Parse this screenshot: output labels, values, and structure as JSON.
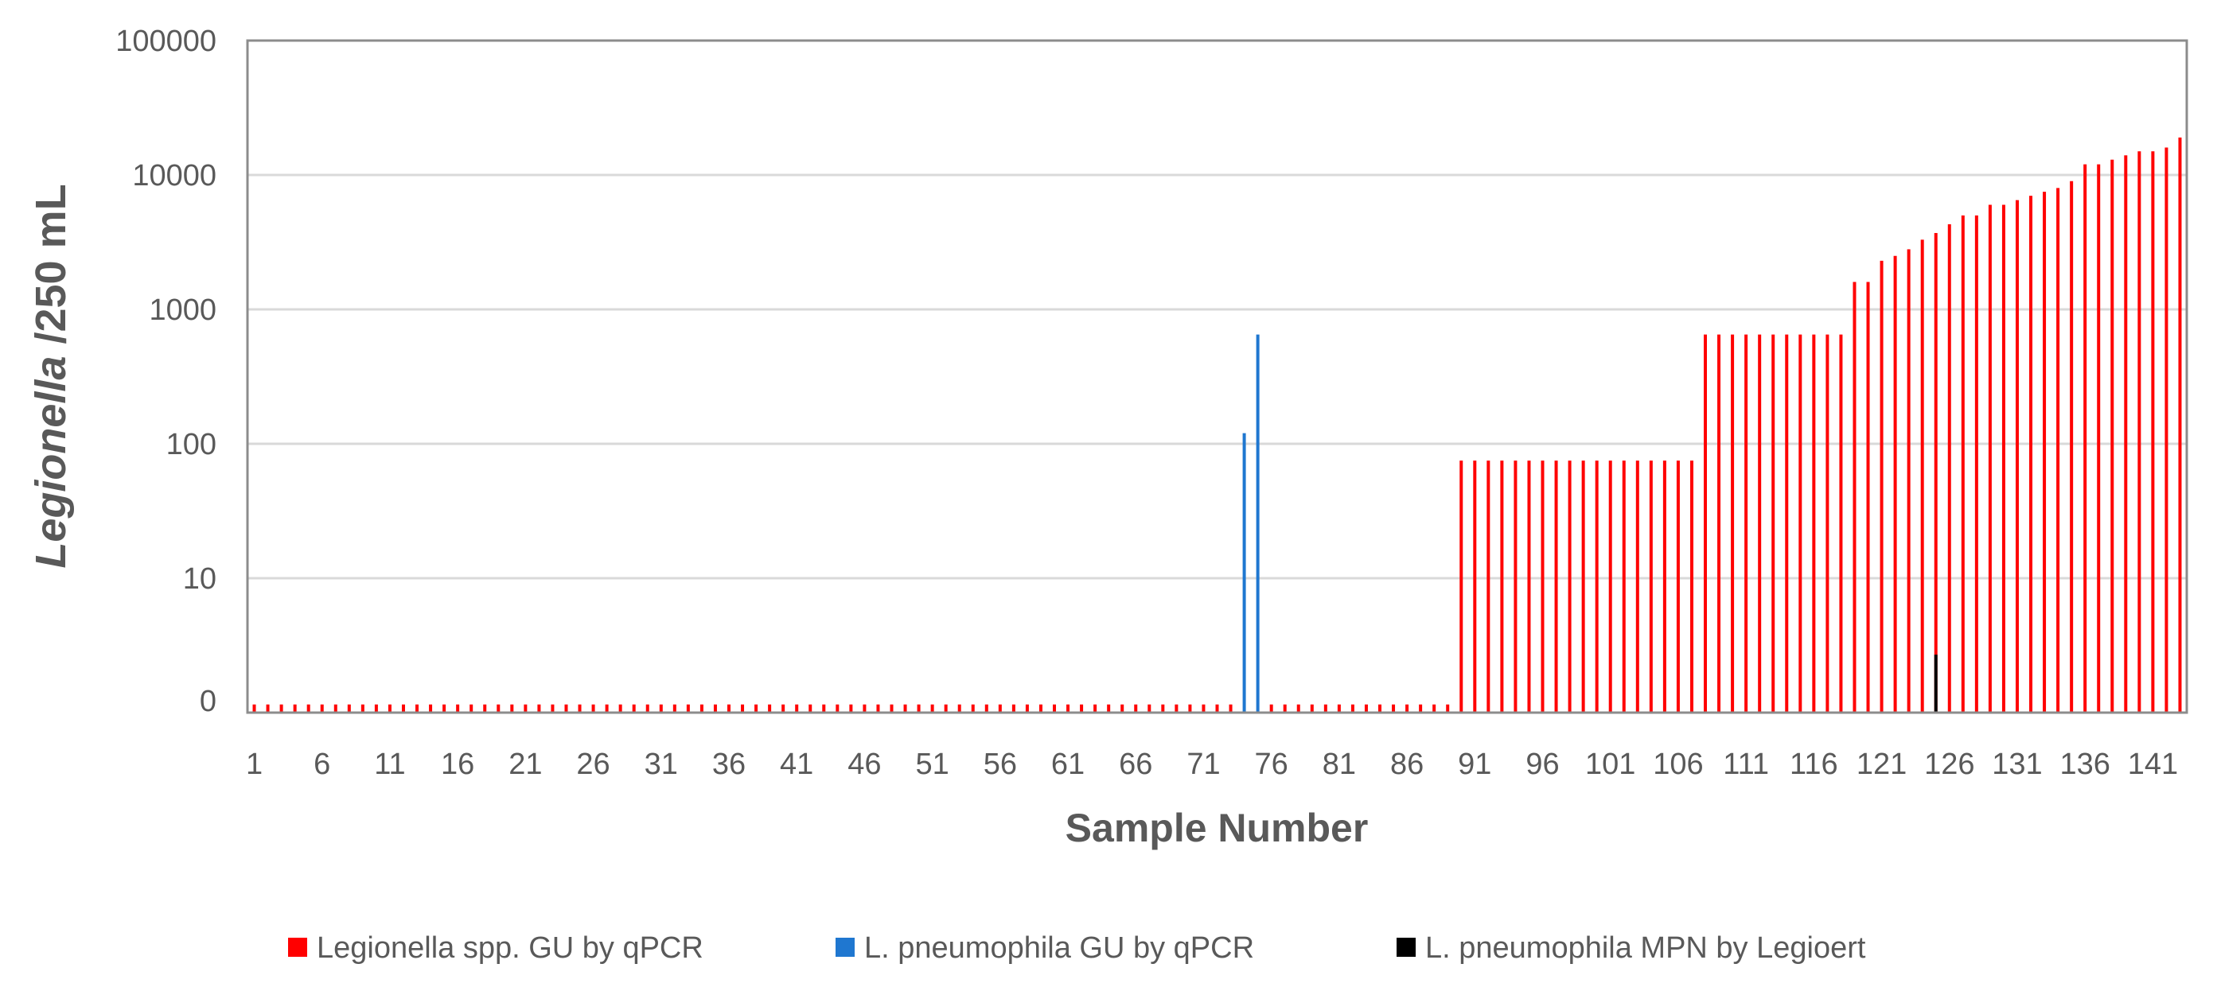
{
  "chart_data": {
    "type": "bar",
    "title": "",
    "xlabel": "Sample Number",
    "ylabel_italic": "Legionella",
    "ylabel_rest": " /250 mL",
    "yscale": "log",
    "ylim": [
      1,
      100000
    ],
    "y_ticks": [
      1,
      10,
      100,
      1000,
      10000,
      100000
    ],
    "y_tick_labels": [
      "0",
      "10",
      "100",
      "1000",
      "10000",
      "100000"
    ],
    "x_count": 143,
    "x_tick_labels": [
      "1",
      "6",
      "11",
      "16",
      "21",
      "26",
      "31",
      "36",
      "41",
      "46",
      "51",
      "56",
      "61",
      "66",
      "71",
      "76",
      "81",
      "86",
      "91",
      "96",
      "101",
      "106",
      "111",
      "116",
      "121",
      "126",
      "131",
      "136",
      "141"
    ],
    "grid": true,
    "legend_position": "bottom",
    "series": [
      {
        "name": "Legionella spp. GU by qPCR",
        "color": "#ff0000",
        "points": [
          [
            1,
            1.15
          ],
          [
            2,
            1.15
          ],
          [
            3,
            1.15
          ],
          [
            4,
            1.15
          ],
          [
            5,
            1.15
          ],
          [
            6,
            1.15
          ],
          [
            7,
            1.15
          ],
          [
            8,
            1.15
          ],
          [
            9,
            1.15
          ],
          [
            10,
            1.15
          ],
          [
            11,
            1.15
          ],
          [
            12,
            1.15
          ],
          [
            13,
            1.15
          ],
          [
            14,
            1.15
          ],
          [
            15,
            1.15
          ],
          [
            16,
            1.15
          ],
          [
            17,
            1.15
          ],
          [
            18,
            1.15
          ],
          [
            19,
            1.15
          ],
          [
            20,
            1.15
          ],
          [
            21,
            1.15
          ],
          [
            22,
            1.15
          ],
          [
            23,
            1.15
          ],
          [
            24,
            1.15
          ],
          [
            25,
            1.15
          ],
          [
            26,
            1.15
          ],
          [
            27,
            1.15
          ],
          [
            28,
            1.15
          ],
          [
            29,
            1.15
          ],
          [
            30,
            1.15
          ],
          [
            31,
            1.15
          ],
          [
            32,
            1.15
          ],
          [
            33,
            1.15
          ],
          [
            34,
            1.15
          ],
          [
            35,
            1.15
          ],
          [
            36,
            1.15
          ],
          [
            37,
            1.15
          ],
          [
            38,
            1.15
          ],
          [
            39,
            1.15
          ],
          [
            40,
            1.15
          ],
          [
            41,
            1.15
          ],
          [
            42,
            1.15
          ],
          [
            43,
            1.15
          ],
          [
            44,
            1.15
          ],
          [
            45,
            1.15
          ],
          [
            46,
            1.15
          ],
          [
            47,
            1.15
          ],
          [
            48,
            1.15
          ],
          [
            49,
            1.15
          ],
          [
            50,
            1.15
          ],
          [
            51,
            1.15
          ],
          [
            52,
            1.15
          ],
          [
            53,
            1.15
          ],
          [
            54,
            1.15
          ],
          [
            55,
            1.15
          ],
          [
            56,
            1.15
          ],
          [
            57,
            1.15
          ],
          [
            58,
            1.15
          ],
          [
            59,
            1.15
          ],
          [
            60,
            1.15
          ],
          [
            61,
            1.15
          ],
          [
            62,
            1.15
          ],
          [
            63,
            1.15
          ],
          [
            64,
            1.15
          ],
          [
            65,
            1.15
          ],
          [
            66,
            1.15
          ],
          [
            67,
            1.15
          ],
          [
            68,
            1.15
          ],
          [
            69,
            1.15
          ],
          [
            70,
            1.15
          ],
          [
            71,
            1.15
          ],
          [
            72,
            1.15
          ],
          [
            73,
            1.15
          ],
          [
            76,
            1.15
          ],
          [
            77,
            1.15
          ],
          [
            78,
            1.15
          ],
          [
            79,
            1.15
          ],
          [
            80,
            1.15
          ],
          [
            81,
            1.15
          ],
          [
            82,
            1.15
          ],
          [
            83,
            1.15
          ],
          [
            84,
            1.15
          ],
          [
            85,
            1.15
          ],
          [
            86,
            1.15
          ],
          [
            87,
            1.15
          ],
          [
            88,
            1.15
          ],
          [
            89,
            1.15
          ],
          [
            90,
            75
          ],
          [
            91,
            75
          ],
          [
            92,
            75
          ],
          [
            93,
            75
          ],
          [
            94,
            75
          ],
          [
            95,
            75
          ],
          [
            96,
            75
          ],
          [
            97,
            75
          ],
          [
            98,
            75
          ],
          [
            99,
            75
          ],
          [
            100,
            75
          ],
          [
            101,
            75
          ],
          [
            102,
            75
          ],
          [
            103,
            75
          ],
          [
            104,
            75
          ],
          [
            105,
            75
          ],
          [
            106,
            75
          ],
          [
            107,
            75
          ],
          [
            108,
            650
          ],
          [
            109,
            650
          ],
          [
            110,
            650
          ],
          [
            111,
            650
          ],
          [
            112,
            650
          ],
          [
            113,
            650
          ],
          [
            114,
            650
          ],
          [
            115,
            650
          ],
          [
            116,
            650
          ],
          [
            117,
            650
          ],
          [
            118,
            650
          ],
          [
            119,
            1600
          ],
          [
            120,
            1600
          ],
          [
            121,
            2300
          ],
          [
            122,
            2500
          ],
          [
            123,
            2800
          ],
          [
            124,
            3300
          ],
          [
            125,
            3700
          ],
          [
            126,
            4300
          ],
          [
            127,
            5000
          ],
          [
            128,
            5000
          ],
          [
            129,
            6000
          ],
          [
            130,
            6000
          ],
          [
            131,
            6500
          ],
          [
            132,
            7000
          ],
          [
            133,
            7500
          ],
          [
            134,
            8000
          ],
          [
            135,
            9000
          ],
          [
            136,
            12000
          ],
          [
            137,
            12000
          ],
          [
            138,
            13000
          ],
          [
            139,
            14000
          ],
          [
            140,
            15000
          ],
          [
            141,
            15000
          ],
          [
            142,
            16000
          ],
          [
            143,
            19000
          ]
        ]
      },
      {
        "name": "L. pneumophila GU by qPCR",
        "color": "#1f77d0",
        "points": [
          [
            74,
            120
          ],
          [
            75,
            650
          ]
        ]
      },
      {
        "name": "L. pneumophila MPN by Legioert",
        "color": "#000000",
        "points": [
          [
            125,
            2.7
          ]
        ]
      }
    ]
  }
}
